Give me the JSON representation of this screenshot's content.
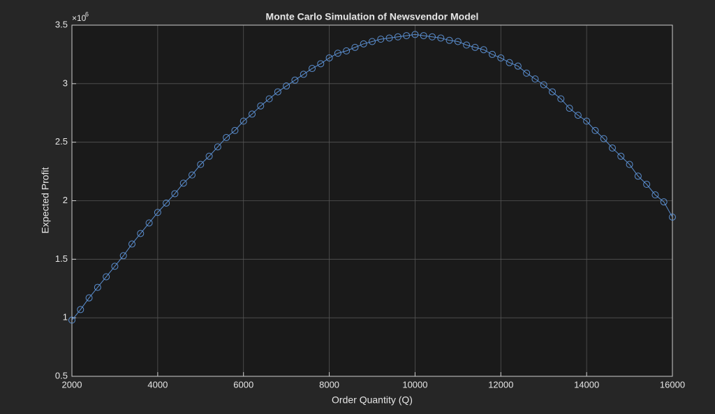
{
  "chart_data": {
    "type": "line",
    "title": "Monte Carlo Simulation of Newsvendor Model",
    "xlabel": "Order Quantity (Q)",
    "ylabel": "Expected Profit",
    "y_multiplier": {
      "base": "×10",
      "exponent": "6"
    },
    "x": [
      2000,
      2200,
      2400,
      2600,
      2800,
      3000,
      3200,
      3400,
      3600,
      3800,
      4000,
      4200,
      4400,
      4600,
      4800,
      5000,
      5200,
      5400,
      5600,
      5800,
      6000,
      6200,
      6400,
      6600,
      6800,
      7000,
      7200,
      7400,
      7600,
      7800,
      8000,
      8200,
      8400,
      8600,
      8800,
      9000,
      9200,
      9400,
      9600,
      9800,
      10000,
      10200,
      10400,
      10600,
      10800,
      11000,
      11200,
      11400,
      11600,
      11800,
      12000,
      12200,
      12400,
      12600,
      12800,
      13000,
      13200,
      13400,
      13600,
      13800,
      14000,
      14200,
      14400,
      14600,
      14800,
      15000,
      15200,
      15400,
      15600,
      15800,
      16000
    ],
    "series": [
      {
        "color": "#5b8fd0",
        "values": [
          0.98,
          1.07,
          1.17,
          1.26,
          1.35,
          1.44,
          1.53,
          1.63,
          1.72,
          1.81,
          1.9,
          1.98,
          2.06,
          2.15,
          2.22,
          2.31,
          2.38,
          2.46,
          2.54,
          2.6,
          2.68,
          2.74,
          2.81,
          2.87,
          2.93,
          2.98,
          3.03,
          3.08,
          3.13,
          3.17,
          3.22,
          3.26,
          3.28,
          3.31,
          3.34,
          3.36,
          3.38,
          3.39,
          3.4,
          3.41,
          3.42,
          3.41,
          3.4,
          3.39,
          3.37,
          3.36,
          3.33,
          3.31,
          3.29,
          3.25,
          3.22,
          3.18,
          3.15,
          3.09,
          3.04,
          2.99,
          2.93,
          2.87,
          2.79,
          2.73,
          2.68,
          2.6,
          2.53,
          2.45,
          2.38,
          2.31,
          2.21,
          2.14,
          2.05,
          1.99,
          1.86
        ]
      }
    ],
    "xlim": [
      2000,
      16000
    ],
    "xticks": [
      2000,
      4000,
      6000,
      8000,
      10000,
      12000,
      14000,
      16000
    ],
    "ylim": [
      0.5,
      3.5
    ],
    "yticks": [
      0.5,
      1,
      1.5,
      2,
      2.5,
      3,
      3.5
    ],
    "grid": true
  }
}
